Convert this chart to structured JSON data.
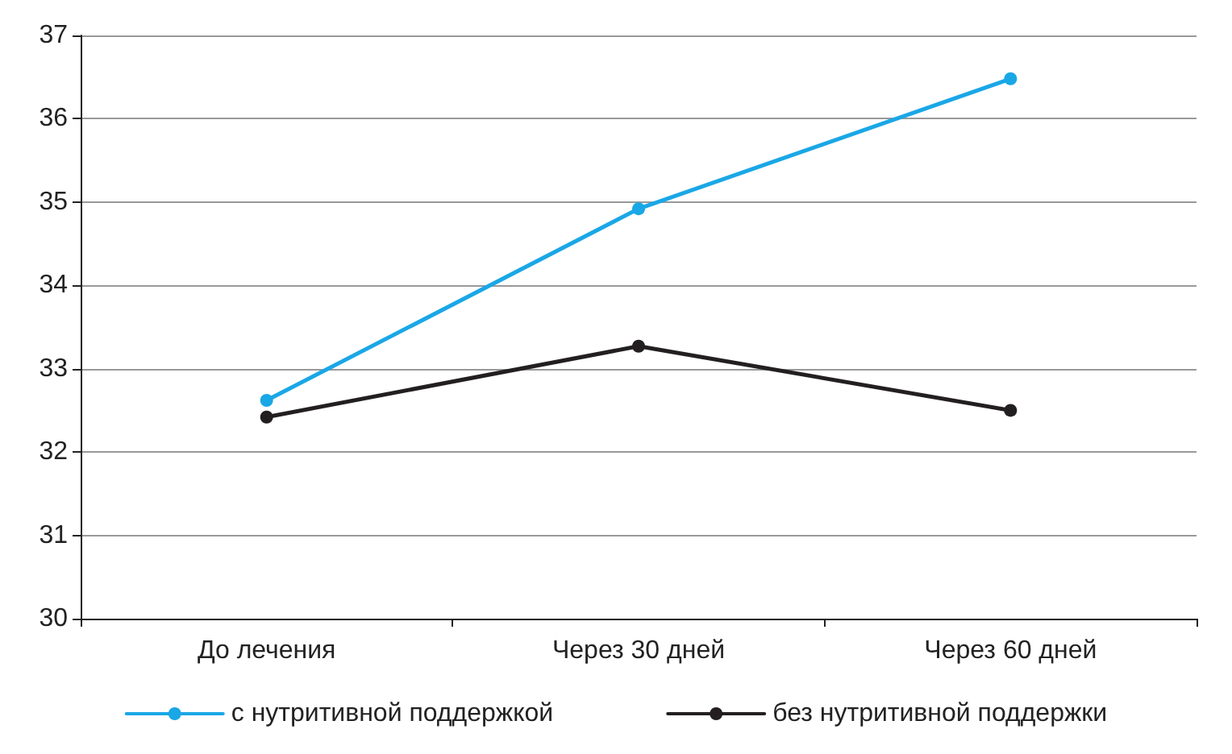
{
  "chart_data": {
    "type": "line",
    "categories": [
      "До лечения",
      "Через 30 дней",
      "Через 60 дней"
    ],
    "series": [
      {
        "name": "с нутритивной поддержкой",
        "color": "#1aa7e6",
        "values": [
          32.62,
          34.92,
          36.48
        ]
      },
      {
        "name": "без нутритивной поддержки",
        "color": "#231f20",
        "values": [
          32.42,
          33.27,
          32.5
        ]
      }
    ],
    "ylim": [
      30,
      37
    ],
    "yticks": [
      30,
      31,
      32,
      33,
      34,
      35,
      36,
      37
    ],
    "grid": "y",
    "legend": "bottom",
    "marker": "circle",
    "line_style": "solid"
  }
}
